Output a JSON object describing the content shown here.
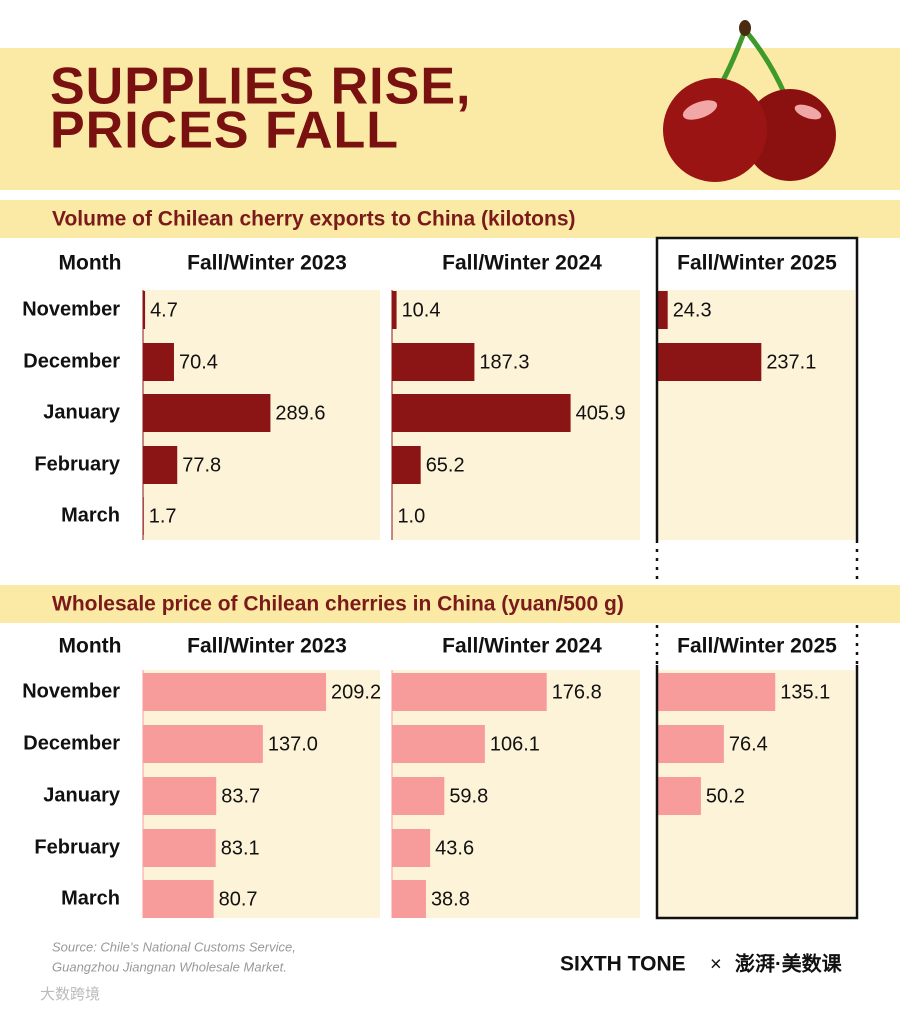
{
  "header": {
    "title_lines": [
      "SUPPLIES RISE,",
      "PRICES FALL"
    ]
  },
  "chart_data": [
    {
      "type": "hbar",
      "title": "Volume of Chilean cherry exports to China (kilotons)",
      "row_header": "Month",
      "categories": [
        "November",
        "December",
        "January",
        "February",
        "March"
      ],
      "series": [
        {
          "name": "Fall/Winter 2023",
          "color": "#8b1414",
          "values": [
            4.7,
            70.4,
            289.6,
            77.8,
            1.7
          ],
          "value_labels": [
            "4.7",
            "70.4",
            "289.6",
            "77.8",
            "1.7"
          ]
        },
        {
          "name": "Fall/Winter 2024",
          "color": "#8b1414",
          "values": [
            10.4,
            187.3,
            405.9,
            65.2,
            1.0
          ],
          "value_labels": [
            "10.4",
            "187.3",
            "405.9",
            "65.2",
            "1.0"
          ]
        },
        {
          "name": "Fall/Winter 2025",
          "color": "#8b1414",
          "values": [
            24.3,
            237.1,
            null,
            null,
            null
          ],
          "value_labels": [
            "24.3",
            "237.1",
            null,
            null,
            null
          ]
        }
      ]
    },
    {
      "type": "hbar",
      "title": "Wholesale price of Chilean cherries in China (yuan/500 g)",
      "row_header": "Month",
      "categories": [
        "November",
        "December",
        "January",
        "February",
        "March"
      ],
      "series": [
        {
          "name": "Fall/Winter 2023",
          "color": "#f79b9b",
          "values": [
            209.2,
            137.0,
            83.7,
            83.1,
            80.7
          ],
          "value_labels": [
            "209.2",
            "137.0",
            "83.7",
            "83.1",
            "80.7"
          ]
        },
        {
          "name": "Fall/Winter 2024",
          "color": "#f79b9b",
          "values": [
            176.8,
            106.1,
            59.8,
            43.6,
            38.8
          ],
          "value_labels": [
            "176.8",
            "106.1",
            "59.8",
            "43.6",
            "38.8"
          ]
        },
        {
          "name": "Fall/Winter 2025",
          "color": "#f79b9b",
          "values": [
            135.1,
            76.4,
            50.2,
            null,
            null
          ],
          "value_labels": [
            "135.1",
            "76.4",
            "50.2",
            null,
            null
          ]
        }
      ]
    }
  ],
  "footer": {
    "source_lines": [
      "Source: Chile's National Customs Service,",
      "Guangzhou Jiangnan Wholesale Market."
    ],
    "brand": "SIXTH TONE",
    "separator": "×",
    "partner": "澎湃·美数课",
    "watermark": "大数跨境"
  }
}
